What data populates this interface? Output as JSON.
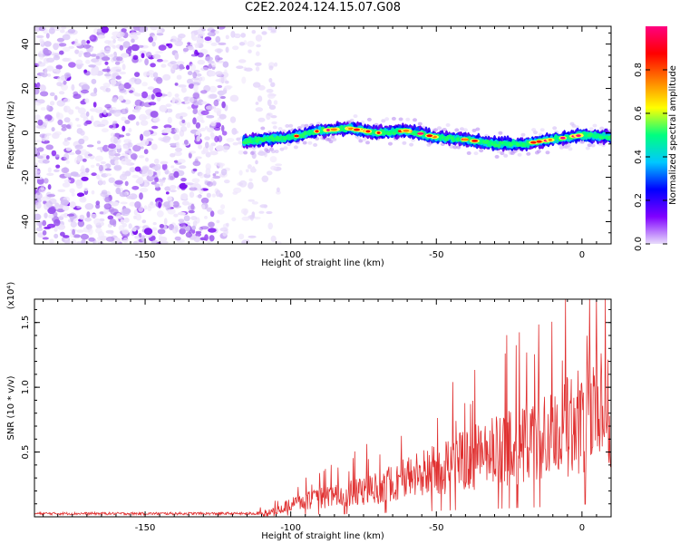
{
  "title": "C2E2.2024.124.15.07.G08",
  "chart_data": [
    {
      "type": "heatmap",
      "xlabel": "Height of straight line (km)",
      "ylabel": "Frequency (Hz)",
      "xlim": [
        -188,
        10
      ],
      "ylim": [
        -50,
        48
      ],
      "xticks": [
        -150,
        -100,
        -50,
        0
      ],
      "yticks": [
        -40,
        -20,
        0,
        20,
        40
      ],
      "colorbar": {
        "label": "Normalized spectral amplitude",
        "range": [
          0,
          1
        ],
        "ticks": [
          "0.0",
          "0.2",
          "0.4",
          "0.6",
          "0.8"
        ],
        "colors": [
          "#e8ddfb",
          "#8000ff",
          "#0000ff",
          "#00c8ff",
          "#00ff80",
          "#ffff00",
          "#ff8000",
          "#ff0000",
          "#ff0080"
        ]
      },
      "signal_track": {
        "height_km": [
          -118,
          -110,
          -100,
          -90,
          -80,
          -70,
          -60,
          -50,
          -40,
          -30,
          -20,
          -10,
          0,
          10
        ],
        "frequency_hz": [
          -4,
          -3,
          -2,
          1,
          2,
          0,
          1,
          -2,
          -3,
          -5,
          -5,
          -3,
          -1,
          -2
        ]
      },
      "noise_region_km": [
        -188,
        -112
      ]
    },
    {
      "type": "line",
      "xlabel": "Height of straight line (km)",
      "ylabel": "SNR (10 * v/v)",
      "yunit_label": "(x10⁴)",
      "xlim": [
        -188,
        10
      ],
      "ylim": [
        0,
        1.68
      ],
      "xticks": [
        -150,
        -100,
        -50,
        0
      ],
      "yticks": [
        0.5,
        1.0,
        1.5
      ],
      "ytick_labels": [
        "0.5",
        "1.0",
        "1.5"
      ],
      "series": [
        {
          "color": "#e03030",
          "envelope_x": [
            -188,
            -150,
            -112,
            -105,
            -100,
            -90,
            -80,
            -70,
            -60,
            -50,
            -40,
            -30,
            -20,
            -10,
            0,
            5,
            10
          ],
          "envelope_y": [
            0.02,
            0.02,
            0.03,
            0.06,
            0.12,
            0.18,
            0.22,
            0.28,
            0.38,
            0.45,
            0.55,
            0.62,
            0.7,
            0.78,
            0.95,
            1.05,
            1.1
          ]
        }
      ]
    }
  ]
}
